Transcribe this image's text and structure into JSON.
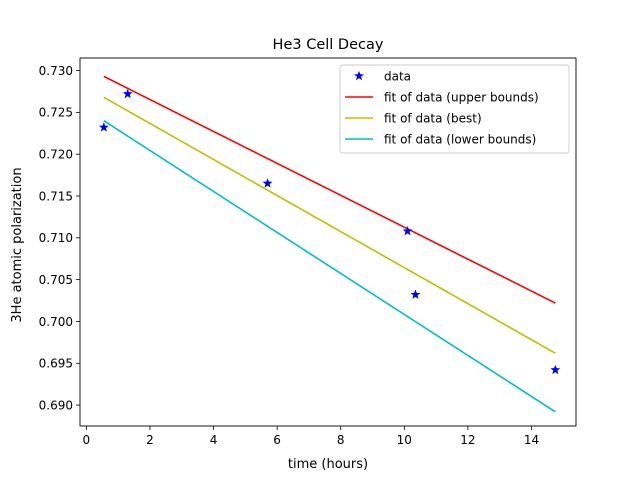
{
  "chart_data": {
    "type": "line",
    "title": "He3 Cell Decay",
    "xlabel": "time (hours)",
    "ylabel": "3He atomic polarization",
    "xlim": [
      -0.2,
      15.4
    ],
    "ylim": [
      0.6875,
      0.7315
    ],
    "xticks": [
      0,
      2,
      4,
      6,
      8,
      10,
      12,
      14
    ],
    "yticks": [
      0.69,
      0.695,
      0.7,
      0.705,
      0.71,
      0.715,
      0.72,
      0.725,
      0.73
    ],
    "ytick_labels": [
      "0.690",
      "0.695",
      "0.700",
      "0.705",
      "0.710",
      "0.715",
      "0.720",
      "0.725",
      "0.730"
    ],
    "grid": false,
    "legend_position": "top-right",
    "series": [
      {
        "name": "data",
        "kind": "scatter",
        "marker": "star",
        "color": "#0000ff",
        "x": [
          0.55,
          1.3,
          5.7,
          10.1,
          10.35,
          14.75
        ],
        "y": [
          0.7232,
          0.7272,
          0.7165,
          0.7108,
          0.7032,
          0.6942
        ]
      },
      {
        "name": "fit of data (upper bounds)",
        "kind": "line",
        "color": "#ff0000",
        "x": [
          0.55,
          14.75
        ],
        "y": [
          0.7293,
          0.7022
        ]
      },
      {
        "name": "fit of data (best)",
        "kind": "line",
        "color": "#bfbf00",
        "x": [
          0.55,
          14.75
        ],
        "y": [
          0.7268,
          0.6962
        ]
      },
      {
        "name": "fit of data (lower bounds)",
        "kind": "line",
        "color": "#00bfbf",
        "x": [
          0.55,
          14.75
        ],
        "y": [
          0.724,
          0.6892
        ]
      }
    ]
  }
}
